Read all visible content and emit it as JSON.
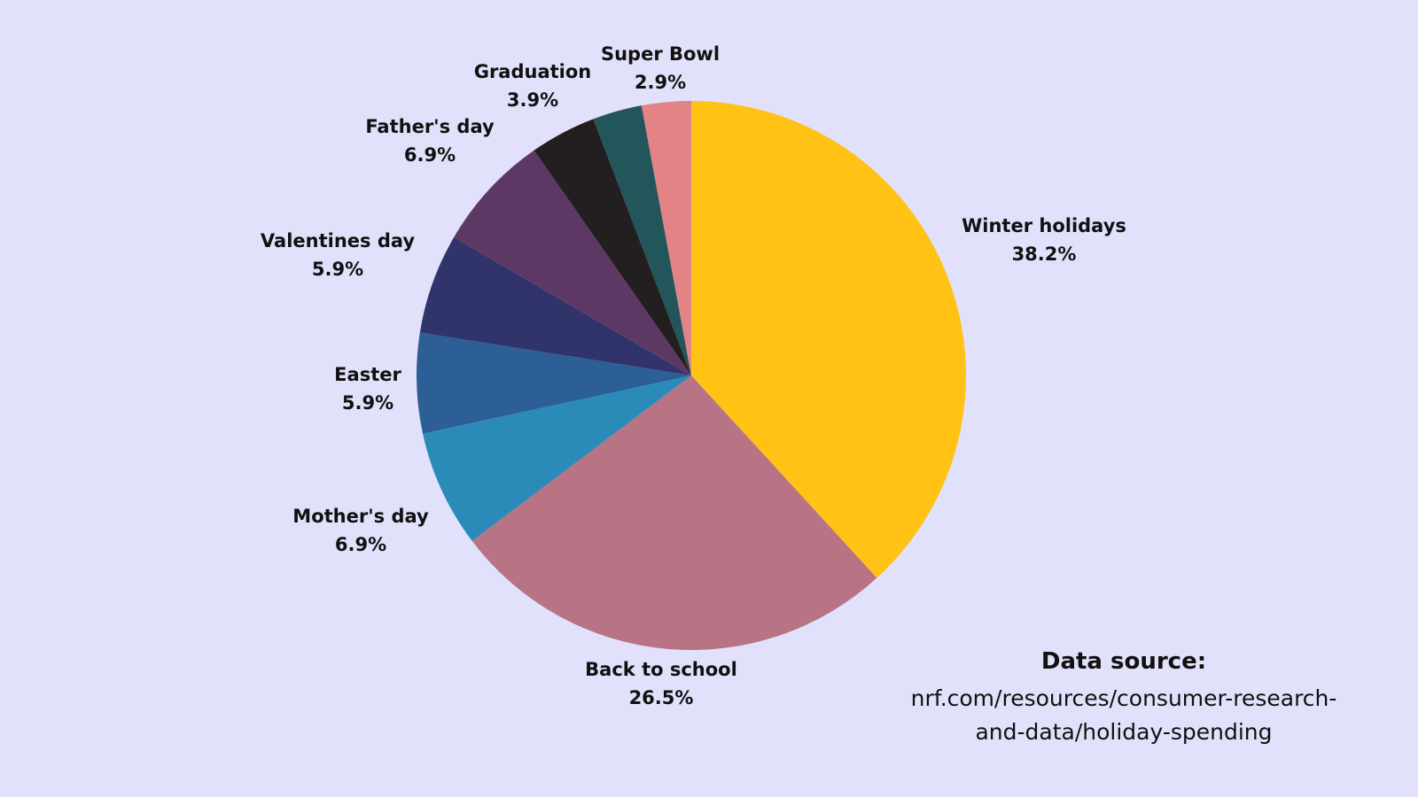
{
  "chart_data": {
    "type": "pie",
    "start_angle_deg": 0,
    "direction": "clockwise",
    "slices": [
      {
        "label": "Winter holidays",
        "value": 38.2,
        "display": "38.2%",
        "color": "#FFC215"
      },
      {
        "label": "Back to school",
        "value": 26.5,
        "display": "26.5%",
        "color": "#B87385"
      },
      {
        "label": "Mother's day",
        "value": 6.9,
        "display": "6.9%",
        "color": "#2B8BB8"
      },
      {
        "label": "Easter",
        "value": 5.9,
        "display": "5.9%",
        "color": "#2C5F96"
      },
      {
        "label": "Valentines day",
        "value": 5.9,
        "display": "5.9%",
        "color": "#31346B"
      },
      {
        "label": "Father's day",
        "value": 6.9,
        "display": "6.9%",
        "color": "#5E3865"
      },
      {
        "label": "Graduation",
        "value": 3.9,
        "display": "3.9%",
        "color": "#231F20"
      },
      {
        "label": "Super Bowl",
        "value": 2.9,
        "display": "2.9%",
        "color": "#22565A"
      },
      {
        "label": "",
        "value": 2.9,
        "display": "",
        "color": "#E38385"
      }
    ]
  },
  "source": {
    "title": "Data source:",
    "line1": "nrf.com/resources/consumer-research-",
    "line2": "and-data/holiday-spending"
  }
}
